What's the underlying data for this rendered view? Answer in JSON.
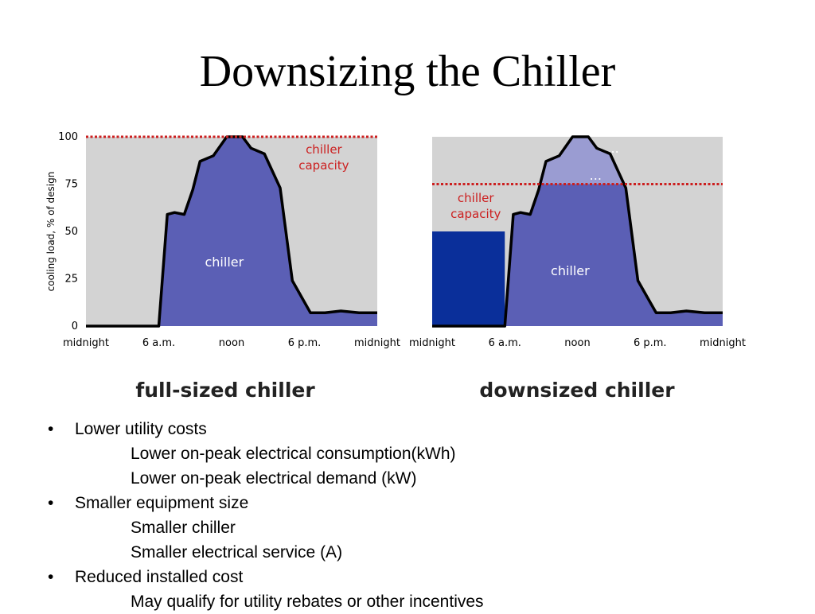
{
  "slide": {
    "title": "Downsizing the Chiller"
  },
  "colors": {
    "plot_background": "#d3d3d3",
    "chiller_area": "#5b5fb5",
    "storage_area": "#9a9cd2",
    "ice_block": "#0a2f9a",
    "capacity_line": "#cc1f1f",
    "outline": "#000000"
  },
  "chart_data": [
    {
      "type": "area",
      "title": "full-sized chiller",
      "ylabel": "cooling load, % of design",
      "ylim": [
        0,
        100
      ],
      "y_ticks": [
        "0",
        "25",
        "50",
        "75",
        "100"
      ],
      "x_ticks": [
        "midnight",
        "6 a.m.",
        "noon",
        "6 p.m.",
        "midnight"
      ],
      "xlim": [
        0,
        24
      ],
      "capacity": {
        "label_lines": [
          "chiller",
          "capacity"
        ],
        "value": 100
      },
      "area_label": "chiller",
      "load_profile": {
        "x": [
          0,
          6,
          6.7,
          7.3,
          8.1,
          8.8,
          9.4,
          10.5,
          11.6,
          12.9,
          13.6,
          14.7,
          16,
          17,
          18.5,
          19.7,
          21,
          22.5,
          24
        ],
        "y": [
          0,
          0,
          59,
          60,
          59,
          72,
          87,
          90,
          100,
          100,
          94,
          91,
          73,
          24,
          7,
          7,
          8,
          7,
          7
        ]
      }
    },
    {
      "type": "area",
      "title": "downsized chiller",
      "xlim": [
        0,
        24
      ],
      "x_ticks": [
        "midnight",
        "6 a.m.",
        "noon",
        "6 p.m.",
        "midnight"
      ],
      "ylim": [
        0,
        100
      ],
      "capacity": {
        "label_lines": [
          "chiller",
          "capacity"
        ],
        "value": 75
      },
      "area_label": "chiller",
      "storage_labels": [
        "..",
        "..."
      ],
      "ice_block": {
        "x": [
          0,
          6
        ],
        "value": 50
      },
      "load_profile": {
        "x": [
          0,
          6,
          6.7,
          7.3,
          8.1,
          8.8,
          9.4,
          10.5,
          11.6,
          12.9,
          13.6,
          14.7,
          16,
          17,
          18.5,
          19.7,
          21,
          22.5,
          24
        ],
        "y": [
          0,
          0,
          59,
          60,
          59,
          72,
          87,
          90,
          100,
          100,
          94,
          91,
          73,
          24,
          7,
          7,
          8,
          7,
          7
        ]
      }
    }
  ],
  "bullets": [
    {
      "level": 1,
      "text": "Lower utility costs"
    },
    {
      "level": 2,
      "text": "Lower on-peak electrical consumption(kWh)"
    },
    {
      "level": 2,
      "text": "Lower on-peak electrical demand (kW)"
    },
    {
      "level": 1,
      "text": "Smaller equipment size"
    },
    {
      "level": 2,
      "text": "Smaller chiller"
    },
    {
      "level": 2,
      "text": "Smaller electrical service (A)"
    },
    {
      "level": 1,
      "text": "Reduced installed cost"
    },
    {
      "level": 2,
      "text": "May qualify for utility rebates or other incentives"
    }
  ]
}
